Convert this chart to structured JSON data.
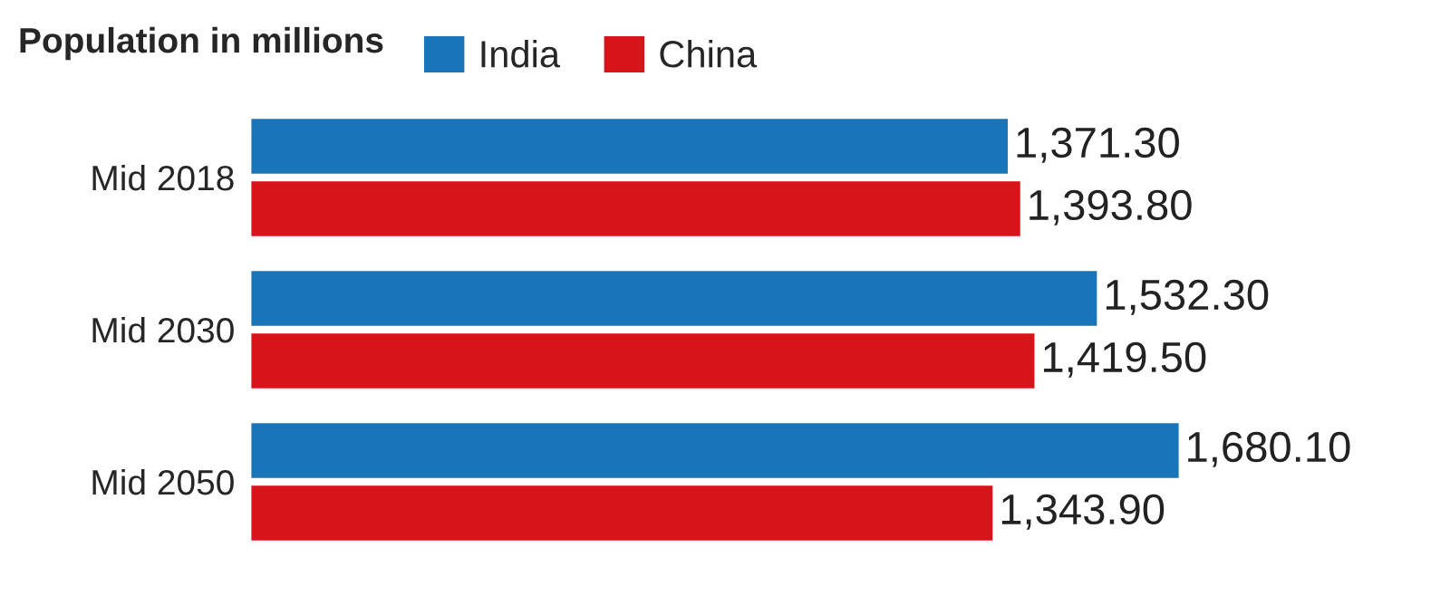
{
  "chart_data": {
    "type": "bar",
    "orientation": "horizontal",
    "title": "Population in millions",
    "categories": [
      "Mid 2018",
      "Mid 2030",
      "Mid 2050"
    ],
    "series": [
      {
        "name": "India",
        "color": "#1a74b8",
        "values": [
          1371.3,
          1532.3,
          1680.1
        ],
        "value_labels": [
          "1,371.30",
          "1,532.30",
          "1,680.10"
        ]
      },
      {
        "name": "China",
        "color": "#d7141a",
        "values": [
          1393.8,
          1419.5,
          1343.9
        ],
        "value_labels": [
          "1,393.80",
          "1,419.50",
          "1,343.90"
        ]
      }
    ],
    "legend": "top",
    "grid": false
  }
}
